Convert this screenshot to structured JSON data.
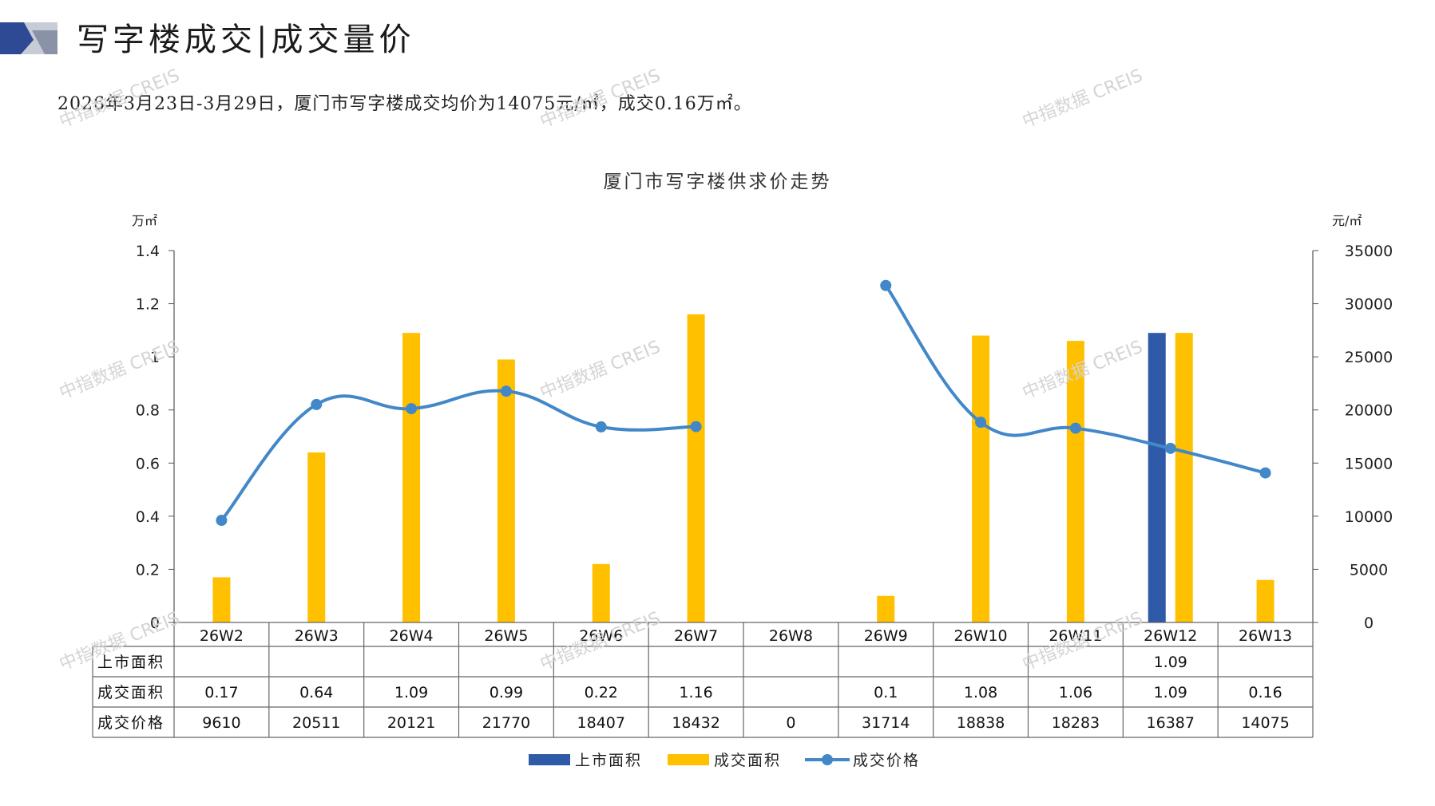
{
  "header": {
    "title": "写字楼成交|成交量价",
    "summary": "2026年3月23日-3月29日，厦门市写字楼成交均价为14075元/㎡，成交0.16万㎡。"
  },
  "watermark": "中指数据 CREIS",
  "colors": {
    "listed": "#2e5aa8",
    "deal_area": "#ffc000",
    "deal_price": "#4288c8",
    "logo_dark": "#2f4a94",
    "logo_light": "#c8ccd6"
  },
  "chart_data": {
    "type": "bar+line",
    "title": "厦门市写字楼供求价走势",
    "y_left_unit": "万㎡",
    "y_right_unit": "元/㎡",
    "y_left_ticks": [
      "0",
      "0.2",
      "0.4",
      "0.6",
      "0.8",
      "1",
      "1.2",
      "1.4"
    ],
    "y_right_ticks": [
      "0",
      "5000",
      "10000",
      "15000",
      "20000",
      "25000",
      "30000",
      "35000"
    ],
    "ylim_left": [
      0,
      1.4
    ],
    "ylim_right": [
      0,
      35000
    ],
    "categories": [
      "26W2",
      "26W3",
      "26W4",
      "26W5",
      "26W6",
      "26W7",
      "26W8",
      "26W9",
      "26W10",
      "26W11",
      "26W12",
      "26W13"
    ],
    "series": [
      {
        "name": "上市面积",
        "type": "bar",
        "axis": "left",
        "values": [
          null,
          null,
          null,
          null,
          null,
          null,
          null,
          null,
          null,
          null,
          1.09,
          null
        ],
        "labels": [
          "",
          "",
          "",
          "",
          "",
          "",
          "",
          "",
          "",
          "",
          "1.09",
          ""
        ]
      },
      {
        "name": "成交面积",
        "type": "bar",
        "axis": "left",
        "values": [
          0.17,
          0.64,
          1.09,
          0.99,
          0.22,
          1.16,
          null,
          0.1,
          1.08,
          1.06,
          1.09,
          0.16
        ],
        "labels": [
          "0.17",
          "0.64",
          "1.09",
          "0.99",
          "0.22",
          "1.16",
          "",
          "0.1",
          "1.08",
          "1.06",
          "1.09",
          "0.16"
        ]
      },
      {
        "name": "成交价格",
        "type": "line",
        "axis": "right",
        "values": [
          9610,
          20511,
          20121,
          21770,
          18407,
          18432,
          0,
          31714,
          18838,
          18283,
          16387,
          14075
        ],
        "labels": [
          "9610",
          "20511",
          "20121",
          "21770",
          "18407",
          "18432",
          "0",
          "31714",
          "18838",
          "18283",
          "16387",
          "14075"
        ]
      }
    ],
    "legend": "bottom",
    "grid": false
  }
}
